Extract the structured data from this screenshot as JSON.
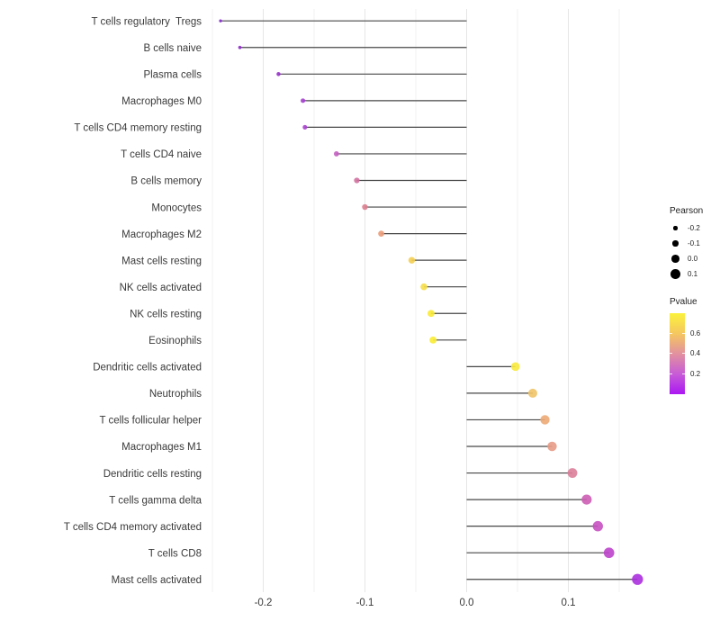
{
  "chart_data": {
    "type": "lollipop",
    "title": "",
    "xlabel": "",
    "ylabel": "",
    "x_range": [
      -0.253,
      0.177
    ],
    "grid": true,
    "background": "#ffffff",
    "stem_color": "#474747",
    "axis_text_color": "#3a3a3a",
    "x_ticks": [
      {
        "value": -0.2,
        "label": "-0.2"
      },
      {
        "value": -0.1,
        "label": "-0.1"
      },
      {
        "value": 0.0,
        "label": "0.0"
      },
      {
        "value": 0.1,
        "label": "0.1"
      }
    ],
    "x_minor_gridlines": [
      -0.25,
      -0.15,
      -0.05,
      0.05,
      0.15
    ],
    "points": [
      {
        "label": "T cells regulatory  Tregs",
        "pearson": -0.242,
        "dot_color": "#8428CE"
      },
      {
        "label": "B cells naive",
        "pearson": -0.223,
        "dot_color": "#8E2CC9"
      },
      {
        "label": "Plasma cells",
        "pearson": -0.185,
        "dot_color": "#9934CC"
      },
      {
        "label": "Macrophages M0",
        "pearson": -0.161,
        "dot_color": "#A440CE"
      },
      {
        "label": "T cells CD4 memory resting",
        "pearson": -0.159,
        "dot_color": "#A844CE"
      },
      {
        "label": "T cells CD4 naive",
        "pearson": -0.128,
        "dot_color": "#C45FC2"
      },
      {
        "label": "B cells memory",
        "pearson": -0.108,
        "dot_color": "#D2719E"
      },
      {
        "label": "Monocytes",
        "pearson": -0.1,
        "dot_color": "#DB7E8E"
      },
      {
        "label": "Macrophages M2",
        "pearson": -0.084,
        "dot_color": "#EB9B79"
      },
      {
        "label": "Mast cells resting",
        "pearson": -0.054,
        "dot_color": "#F4CF52"
      },
      {
        "label": "NK cells activated",
        "pearson": -0.042,
        "dot_color": "#F6DE48"
      },
      {
        "label": "NK cells resting",
        "pearson": -0.035,
        "dot_color": "#F9EA35"
      },
      {
        "label": "Eosinophils",
        "pearson": -0.033,
        "dot_color": "#FAEC33"
      },
      {
        "label": "Dendritic cells activated",
        "pearson": 0.048,
        "dot_color": "#F8E93F"
      },
      {
        "label": "Neutrophils",
        "pearson": 0.065,
        "dot_color": "#F0C368"
      },
      {
        "label": "T cells follicular helper",
        "pearson": 0.077,
        "dot_color": "#EDAA76"
      },
      {
        "label": "Macrophages M1",
        "pearson": 0.084,
        "dot_color": "#E79B86"
      },
      {
        "label": "Dendritic cells resting",
        "pearson": 0.104,
        "dot_color": "#DB7E9A"
      },
      {
        "label": "T cells gamma delta",
        "pearson": 0.118,
        "dot_color": "#CC5DB4"
      },
      {
        "label": "T cells CD4 memory activated",
        "pearson": 0.129,
        "dot_color": "#C750C1"
      },
      {
        "label": "T cells CD8",
        "pearson": 0.14,
        "dot_color": "#BC44CB"
      },
      {
        "label": "Mast cells activated",
        "pearson": 0.168,
        "dot_color": "#AC30DF"
      }
    ],
    "legend_size": {
      "title": "Pearson",
      "dot_color": "#000000",
      "entries": [
        {
          "value": -0.2,
          "label": "-0.2"
        },
        {
          "value": -0.1,
          "label": "-0.1"
        },
        {
          "value": 0.0,
          "label": "0.0"
        },
        {
          "value": 0.1,
          "label": "0.1"
        }
      ]
    },
    "legend_color": {
      "title": "Pvalue",
      "gradient_stops": [
        "#FBF23C",
        "#F5C75F",
        "#E2919F",
        "#C75CD6",
        "#AB17F2"
      ],
      "ticks": [
        {
          "label": "0.6",
          "pos": 0.24
        },
        {
          "label": "0.4",
          "pos": 0.49
        },
        {
          "label": "0.2",
          "pos": 0.74
        }
      ]
    }
  }
}
